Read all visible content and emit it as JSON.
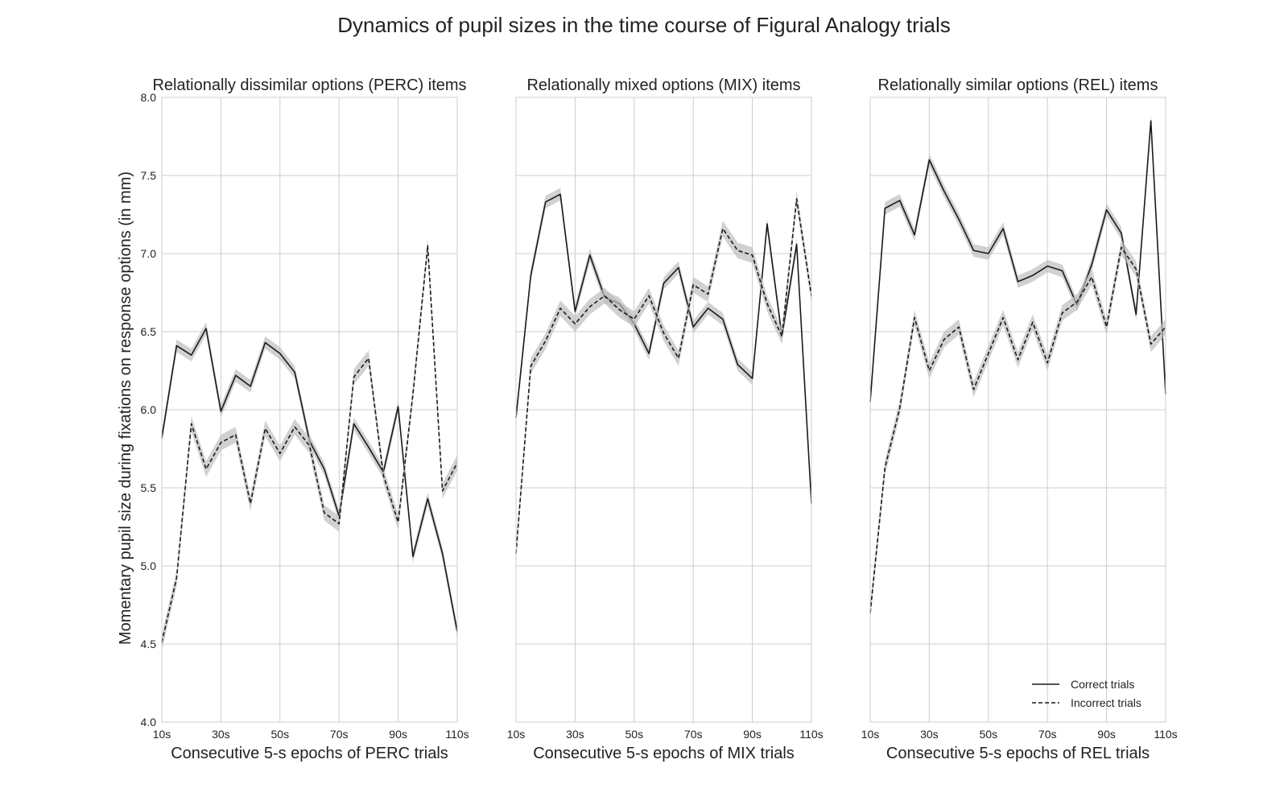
{
  "title": "Dynamics of pupil sizes in the time course of Figural Analogy trials",
  "ylabel": "Momentary pupil size during fixations on response options (in mm)",
  "legend": {
    "placement": "bottom-right of third panel",
    "entries": [
      {
        "label": "Correct trials",
        "style": "solid"
      },
      {
        "label": "Incorrect trials",
        "style": "dashed"
      }
    ]
  },
  "colors": {
    "line": "#1a1a1a",
    "band": "#bdbdbd",
    "grid": "#cccccc",
    "frame": "#cccccc"
  },
  "chart_data": [
    {
      "type": "line",
      "title": "Relationally dissimilar options (PERC) items",
      "xlabel": "Consecutive 5-s epochs of PERC trials",
      "xlim": [
        10,
        110
      ],
      "ylim": [
        4.0,
        8.0
      ],
      "grid": true,
      "x_ticks": [
        10,
        30,
        50,
        70,
        90,
        110
      ],
      "x_tick_labels": [
        "10s",
        "30s",
        "50s",
        "70s",
        "90s",
        "110s"
      ],
      "y_ticks": [
        4.0,
        4.5,
        5.0,
        5.5,
        6.0,
        6.5,
        7.0,
        7.5,
        8.0
      ],
      "y_tick_labels": [
        "4.0",
        "4.5",
        "5.0",
        "5.5",
        "6.0",
        "6.5",
        "7.0",
        "7.5",
        "8.0"
      ],
      "show_y_tick_labels": true,
      "x": [
        10,
        15,
        20,
        25,
        30,
        35,
        40,
        45,
        50,
        55,
        60,
        65,
        70,
        75,
        80,
        85,
        90,
        95,
        100,
        105,
        110
      ],
      "series": [
        {
          "style": "solid",
          "band": 0.04,
          "values": [
            5.82,
            6.41,
            6.35,
            6.52,
            5.99,
            6.22,
            6.15,
            6.43,
            6.36,
            6.24,
            5.8,
            5.62,
            5.32,
            5.91,
            5.76,
            5.6,
            6.02,
            5.06,
            5.43,
            5.08,
            4.58
          ]
        },
        {
          "style": "dashed",
          "band": 0.05,
          "values": [
            4.51,
            4.92,
            5.91,
            5.62,
            5.79,
            5.84,
            5.4,
            5.88,
            5.72,
            5.89,
            5.77,
            5.34,
            5.27,
            6.21,
            6.33,
            5.58,
            5.28,
            6.1,
            7.05,
            5.48,
            5.66
          ]
        }
      ]
    },
    {
      "type": "line",
      "title": "Relationally mixed options (MIX) items",
      "xlabel": "Consecutive 5-s epochs of MIX trials",
      "xlim": [
        10,
        110
      ],
      "ylim": [
        4.0,
        8.0
      ],
      "grid": true,
      "x_ticks": [
        10,
        30,
        50,
        70,
        90,
        110
      ],
      "x_tick_labels": [
        "10s",
        "30s",
        "50s",
        "70s",
        "90s",
        "110s"
      ],
      "y_ticks": [
        4.0,
        4.5,
        5.0,
        5.5,
        6.0,
        6.5,
        7.0,
        7.5,
        8.0
      ],
      "show_y_tick_labels": false,
      "x": [
        10,
        15,
        20,
        25,
        30,
        35,
        40,
        45,
        50,
        55,
        60,
        65,
        70,
        75,
        80,
        85,
        90,
        95,
        100,
        105,
        110
      ],
      "series": [
        {
          "style": "solid",
          "band": 0.04,
          "values": [
            5.95,
            6.86,
            7.33,
            7.38,
            6.63,
            6.99,
            6.72,
            6.68,
            6.55,
            6.36,
            6.81,
            6.91,
            6.53,
            6.65,
            6.58,
            6.29,
            6.2,
            7.19,
            6.47,
            7.06,
            5.4
          ]
        },
        {
          "style": "dashed",
          "band": 0.05,
          "values": [
            5.08,
            6.28,
            6.44,
            6.65,
            6.55,
            6.66,
            6.73,
            6.64,
            6.58,
            6.73,
            6.49,
            6.33,
            6.8,
            6.74,
            7.16,
            7.02,
            6.99,
            6.68,
            6.47,
            7.35,
            6.73
          ]
        }
      ]
    },
    {
      "type": "line",
      "title": "Relationally similar options (REL) items",
      "xlabel": "Consecutive 5-s epochs of REL trials",
      "xlim": [
        10,
        110
      ],
      "ylim": [
        4.0,
        8.0
      ],
      "grid": true,
      "x_ticks": [
        10,
        30,
        50,
        70,
        90,
        110
      ],
      "x_tick_labels": [
        "10s",
        "30s",
        "50s",
        "70s",
        "90s",
        "110s"
      ],
      "y_ticks": [
        4.0,
        4.5,
        5.0,
        5.5,
        6.0,
        6.5,
        7.0,
        7.5,
        8.0
      ],
      "show_y_tick_labels": false,
      "x": [
        10,
        15,
        20,
        25,
        30,
        35,
        40,
        45,
        50,
        55,
        60,
        65,
        70,
        75,
        80,
        85,
        90,
        95,
        100,
        105,
        110
      ],
      "series": [
        {
          "style": "solid",
          "band": 0.04,
          "values": [
            6.05,
            7.29,
            7.34,
            7.12,
            7.6,
            7.4,
            7.22,
            7.02,
            7.0,
            7.16,
            6.82,
            6.86,
            6.92,
            6.89,
            6.67,
            6.93,
            7.28,
            7.13,
            6.61,
            7.85,
            6.1
          ]
        },
        {
          "style": "dashed",
          "band": 0.05,
          "values": [
            4.7,
            5.63,
            6.01,
            6.59,
            6.25,
            6.45,
            6.53,
            6.13,
            6.36,
            6.59,
            6.32,
            6.56,
            6.3,
            6.62,
            6.69,
            6.85,
            6.53,
            7.04,
            6.9,
            6.42,
            6.53
          ]
        }
      ]
    }
  ]
}
